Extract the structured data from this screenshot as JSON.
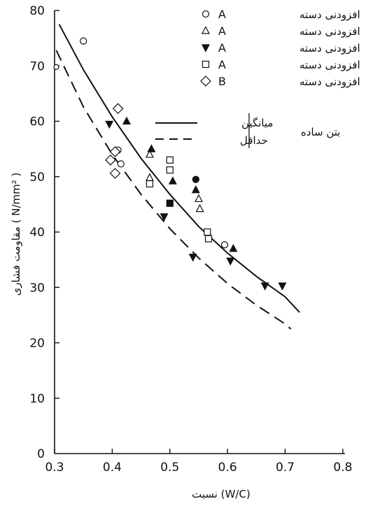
{
  "chart_data": {
    "type": "scatter",
    "title": "",
    "xlabel": "نسبت (W/C)",
    "ylabel": "مقاومت فشاری ( N/mm² )",
    "xlim": [
      0.3,
      0.8
    ],
    "ylim": [
      0,
      80
    ],
    "x_ticks": [
      "0.3",
      "0.4",
      "0.5",
      "0.6",
      "0.7",
      "0.8"
    ],
    "y_ticks": [
      "0",
      "10",
      "20",
      "30",
      "40",
      "50",
      "60",
      "70",
      "80"
    ],
    "origin_label": "0",
    "grid": false,
    "legend_position": "top-right",
    "series": [
      {
        "name": "افزودنی دسته",
        "letter": "A",
        "marker": "circle-open",
        "points": [
          [
            0.35,
            74.5
          ],
          [
            0.41,
            54.8
          ],
          [
            0.415,
            52.3
          ],
          [
            0.595,
            37.7
          ]
        ]
      },
      {
        "name": "افزودنی دسته",
        "letter": "A",
        "marker": "triangle-up-open",
        "points": [
          [
            0.465,
            54.0
          ],
          [
            0.465,
            49.8
          ],
          [
            0.55,
            46.0
          ],
          [
            0.552,
            44.2
          ]
        ]
      },
      {
        "name": "افزودنی دسته",
        "letter": "A",
        "marker": "triangle-down-filled",
        "points": [
          [
            0.395,
            59.5
          ],
          [
            0.49,
            42.8
          ],
          [
            0.54,
            35.5
          ],
          [
            0.605,
            34.8
          ],
          [
            0.665,
            30.3
          ],
          [
            0.695,
            30.3
          ]
        ]
      },
      {
        "name": "افزودنی دسته",
        "letter": "A",
        "marker": "square-open",
        "points": [
          [
            0.465,
            48.7
          ],
          [
            0.5,
            53.0
          ],
          [
            0.5,
            51.2
          ],
          [
            0.565,
            40.0
          ],
          [
            0.567,
            38.8
          ]
        ]
      },
      {
        "name": "افزودنی دسته",
        "letter": "B",
        "marker": "diamond-open",
        "points": [
          [
            0.41,
            62.3
          ],
          [
            0.405,
            54.5
          ],
          [
            0.397,
            53.0
          ],
          [
            0.405,
            50.6
          ]
        ]
      },
      {
        "name": "",
        "marker": "triangle-up-filled",
        "in_legend": false,
        "points": [
          [
            0.425,
            60.0
          ],
          [
            0.468,
            55.0
          ],
          [
            0.505,
            49.2
          ],
          [
            0.545,
            47.6
          ],
          [
            0.61,
            37.0
          ]
        ]
      },
      {
        "name": "",
        "marker": "circle-filled",
        "in_legend": false,
        "points": [
          [
            0.545,
            49.5
          ]
        ]
      },
      {
        "name": "",
        "marker": "square-filled",
        "in_legend": false,
        "points": [
          [
            0.5,
            45.2
          ]
        ]
      },
      {
        "name": "",
        "marker": "open-dot",
        "in_legend": false,
        "points": [
          [
            0.303,
            69.8
          ]
        ]
      }
    ],
    "curves": [
      {
        "name": "میانگین",
        "style": "solid",
        "points": [
          [
            0.308,
            77.5
          ],
          [
            0.35,
            69.3
          ],
          [
            0.4,
            60.8
          ],
          [
            0.45,
            53.3
          ],
          [
            0.5,
            46.8
          ],
          [
            0.55,
            41.0
          ],
          [
            0.6,
            36.2
          ],
          [
            0.65,
            32.0
          ],
          [
            0.7,
            28.3
          ],
          [
            0.725,
            25.5
          ]
        ]
      },
      {
        "name": "حداقل",
        "style": "dashed",
        "points": [
          [
            0.303,
            72.8
          ],
          [
            0.35,
            62.6
          ],
          [
            0.4,
            54.0
          ],
          [
            0.45,
            46.8
          ],
          [
            0.5,
            40.6
          ],
          [
            0.55,
            35.3
          ],
          [
            0.6,
            30.7
          ],
          [
            0.65,
            26.8
          ],
          [
            0.7,
            23.4
          ],
          [
            0.71,
            22.5
          ]
        ]
      }
    ],
    "curve_group_label": "بتن ساده"
  }
}
